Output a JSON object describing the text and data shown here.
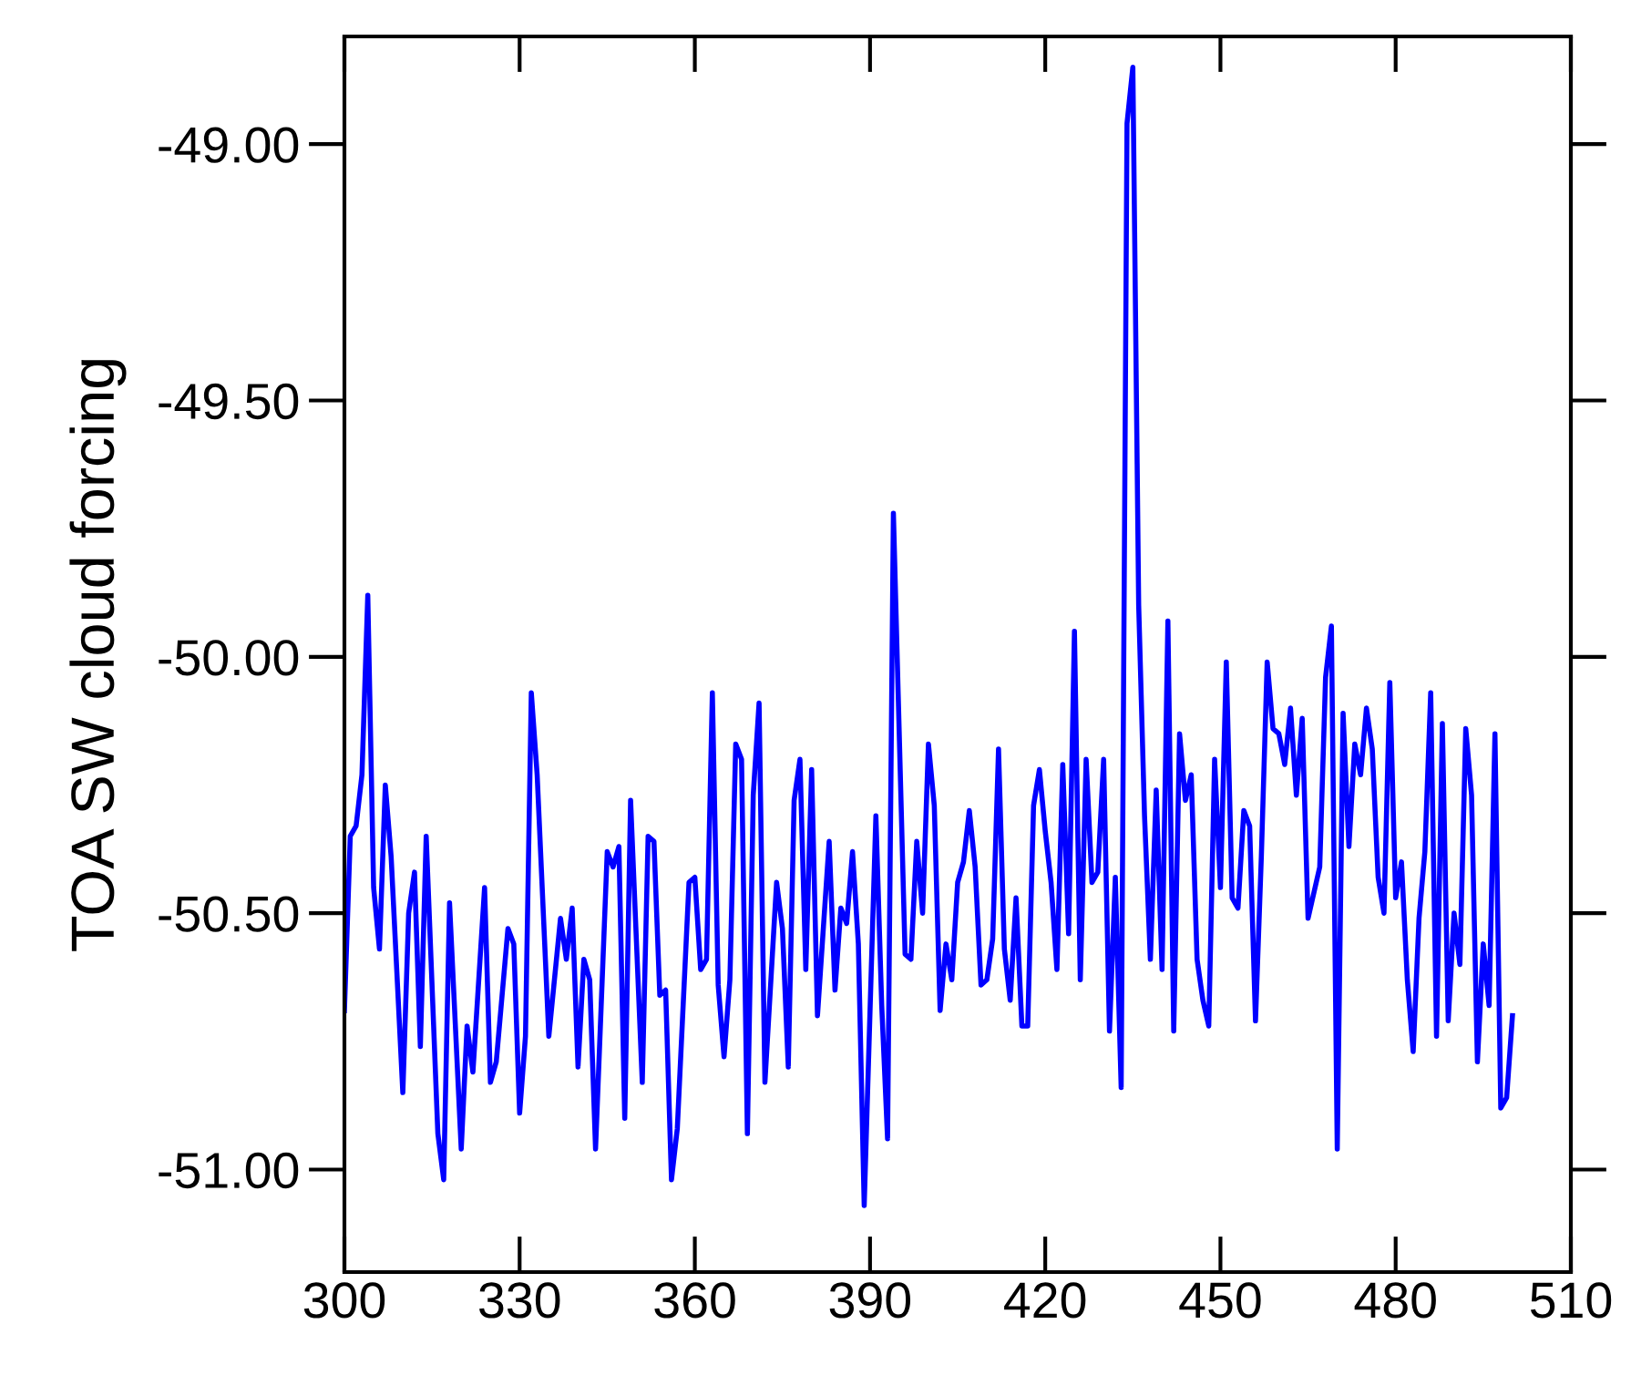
{
  "chart_data": {
    "type": "line",
    "ylabel": "TOA SW cloud forcing",
    "xlim": [
      300,
      510
    ],
    "xticks": [
      300,
      330,
      360,
      390,
      420,
      450,
      480,
      510
    ],
    "ylim": [
      -51.2,
      -48.79
    ],
    "yticks": [
      {
        "value": -51,
        "label": "-51.00"
      },
      {
        "value": -50.5,
        "label": "-50.50"
      },
      {
        "value": -50,
        "label": "-50.00"
      },
      {
        "value": -49.5,
        "label": "-49.50"
      },
      {
        "value": -49,
        "label": "-49.00"
      }
    ],
    "grid": false,
    "marker": "none",
    "line_style": "solid",
    "series": [
      {
        "color": "#0000ff",
        "x": [
          300,
          301,
          302,
          303,
          304,
          305,
          306,
          307,
          308,
          310,
          311,
          312,
          313,
          314,
          316,
          317,
          318,
          320,
          321,
          322,
          324,
          325,
          326,
          328,
          329,
          330,
          331,
          332,
          333,
          335,
          337,
          338,
          339,
          340,
          341,
          342,
          343,
          345,
          346,
          347,
          348,
          349,
          351,
          352,
          353,
          354,
          355,
          356,
          357,
          359,
          360,
          361,
          362,
          363,
          364,
          365,
          366,
          367,
          368,
          369,
          370,
          371,
          372,
          374,
          375,
          376,
          377,
          378,
          379,
          380,
          381,
          383,
          384,
          385,
          386,
          387,
          388,
          389,
          391,
          392,
          393,
          394,
          396,
          397,
          398,
          399,
          400,
          401,
          402,
          403,
          404,
          405,
          406,
          407,
          408,
          409,
          410,
          411,
          412,
          413,
          414,
          415,
          416,
          417,
          418,
          419,
          420,
          421,
          422,
          423,
          424,
          425,
          426,
          427,
          428,
          429,
          430,
          431,
          432,
          433,
          434,
          435,
          436,
          437,
          438,
          439,
          440,
          441,
          442,
          443,
          444,
          445,
          446,
          447,
          448,
          449,
          450,
          451,
          452,
          453,
          454,
          455,
          456,
          457,
          458,
          459,
          460,
          461,
          462,
          463,
          464,
          465,
          467,
          468,
          469,
          470,
          471,
          472,
          473,
          474,
          475,
          476,
          477,
          478,
          479,
          480,
          481,
          482,
          483,
          484,
          485,
          486,
          487,
          488,
          489,
          490,
          491,
          492,
          493,
          494,
          495,
          496,
          497,
          498,
          499,
          500
        ],
        "values": [
          -50.69,
          -50.35,
          -50.33,
          -50.23,
          -49.88,
          -50.45,
          -50.57,
          -50.25,
          -50.39,
          -50.85,
          -50.5,
          -50.42,
          -50.76,
          -50.35,
          -50.93,
          -51.02,
          -50.48,
          -50.96,
          -50.72,
          -50.81,
          -50.45,
          -50.83,
          -50.79,
          -50.53,
          -50.56,
          -50.89,
          -50.74,
          -50.07,
          -50.23,
          -50.74,
          -50.51,
          -50.59,
          -50.49,
          -50.8,
          -50.59,
          -50.63,
          -50.96,
          -50.38,
          -50.41,
          -50.37,
          -50.9,
          -50.28,
          -50.83,
          -50.35,
          -50.36,
          -50.66,
          -50.65,
          -51.02,
          -50.92,
          -50.44,
          -50.43,
          -50.61,
          -50.59,
          -50.07,
          -50.64,
          -50.78,
          -50.63,
          -50.17,
          -50.2,
          -50.93,
          -50.27,
          -50.09,
          -50.83,
          -50.44,
          -50.53,
          -50.8,
          -50.28,
          -50.2,
          -50.61,
          -50.22,
          -50.7,
          -50.36,
          -50.65,
          -50.49,
          -50.52,
          -50.38,
          -50.56,
          -51.07,
          -50.31,
          -50.68,
          -50.94,
          -49.72,
          -50.58,
          -50.59,
          -50.36,
          -50.5,
          -50.17,
          -50.29,
          -50.69,
          -50.56,
          -50.63,
          -50.44,
          -50.4,
          -50.3,
          -50.41,
          -50.64,
          -50.63,
          -50.55,
          -50.18,
          -50.57,
          -50.67,
          -50.47,
          -50.72,
          -50.72,
          -50.29,
          -50.22,
          -50.34,
          -50.44,
          -50.61,
          -50.21,
          -50.54,
          -49.95,
          -50.63,
          -50.2,
          -50.44,
          -50.42,
          -50.2,
          -50.73,
          -50.43,
          -50.84,
          -48.96,
          -48.85,
          -49.9,
          -50.31,
          -50.59,
          -50.26,
          -50.61,
          -49.93,
          -50.73,
          -50.15,
          -50.28,
          -50.23,
          -50.59,
          -50.67,
          -50.72,
          -50.2,
          -50.45,
          -50.01,
          -50.47,
          -50.49,
          -50.3,
          -50.33,
          -50.71,
          -50.39,
          -50.01,
          -50.14,
          -50.15,
          -50.21,
          -50.1,
          -50.27,
          -50.12,
          -50.51,
          -50.41,
          -50.04,
          -49.94,
          -50.96,
          -50.11,
          -50.37,
          -50.17,
          -50.23,
          -50.1,
          -50.18,
          -50.43,
          -50.5,
          -50.05,
          -50.47,
          -50.4,
          -50.63,
          -50.77,
          -50.51,
          -50.38,
          -50.07,
          -50.74,
          -50.13,
          -50.71,
          -50.5,
          -50.6,
          -50.14,
          -50.27,
          -50.79,
          -50.56,
          -50.68,
          -50.15,
          -50.88,
          -50.86,
          -50.7
        ]
      }
    ]
  }
}
